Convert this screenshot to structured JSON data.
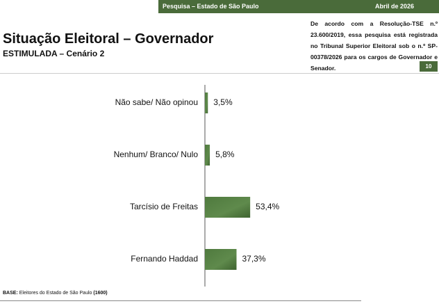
{
  "header": {
    "survey": "Pesquisa – Estado de São Paulo",
    "date": "Abril de 2026",
    "note": "De acordo com a Resolução-TSE n.º 23.600/2019, essa pesquisa está registrada no Tribunal Superior Eleitoral sob o n.º SP-00378/2026 para os cargos de Governador e Senador.",
    "page_number": "10"
  },
  "chart_data": {
    "type": "bar",
    "orientation": "horizontal",
    "title": "Situação Eleitoral – Governador",
    "subtitle": "ESTIMULADA – Cenário 2",
    "categories": [
      "Não sabe/ Não opinou",
      "Nenhum/ Branco/ Nulo",
      "Tarcísio de Freitas",
      "Fernando Haddad"
    ],
    "values": [
      3.5,
      5.8,
      53.4,
      37.3
    ],
    "value_labels": [
      "3,5%",
      "5,8%",
      "53,4%",
      "37,3%"
    ],
    "color": "#4f7a3e"
  },
  "footer": {
    "base_label": "BASE:",
    "base_text": "Eleitores do Estado de São Paulo",
    "base_n": "(1600)"
  }
}
